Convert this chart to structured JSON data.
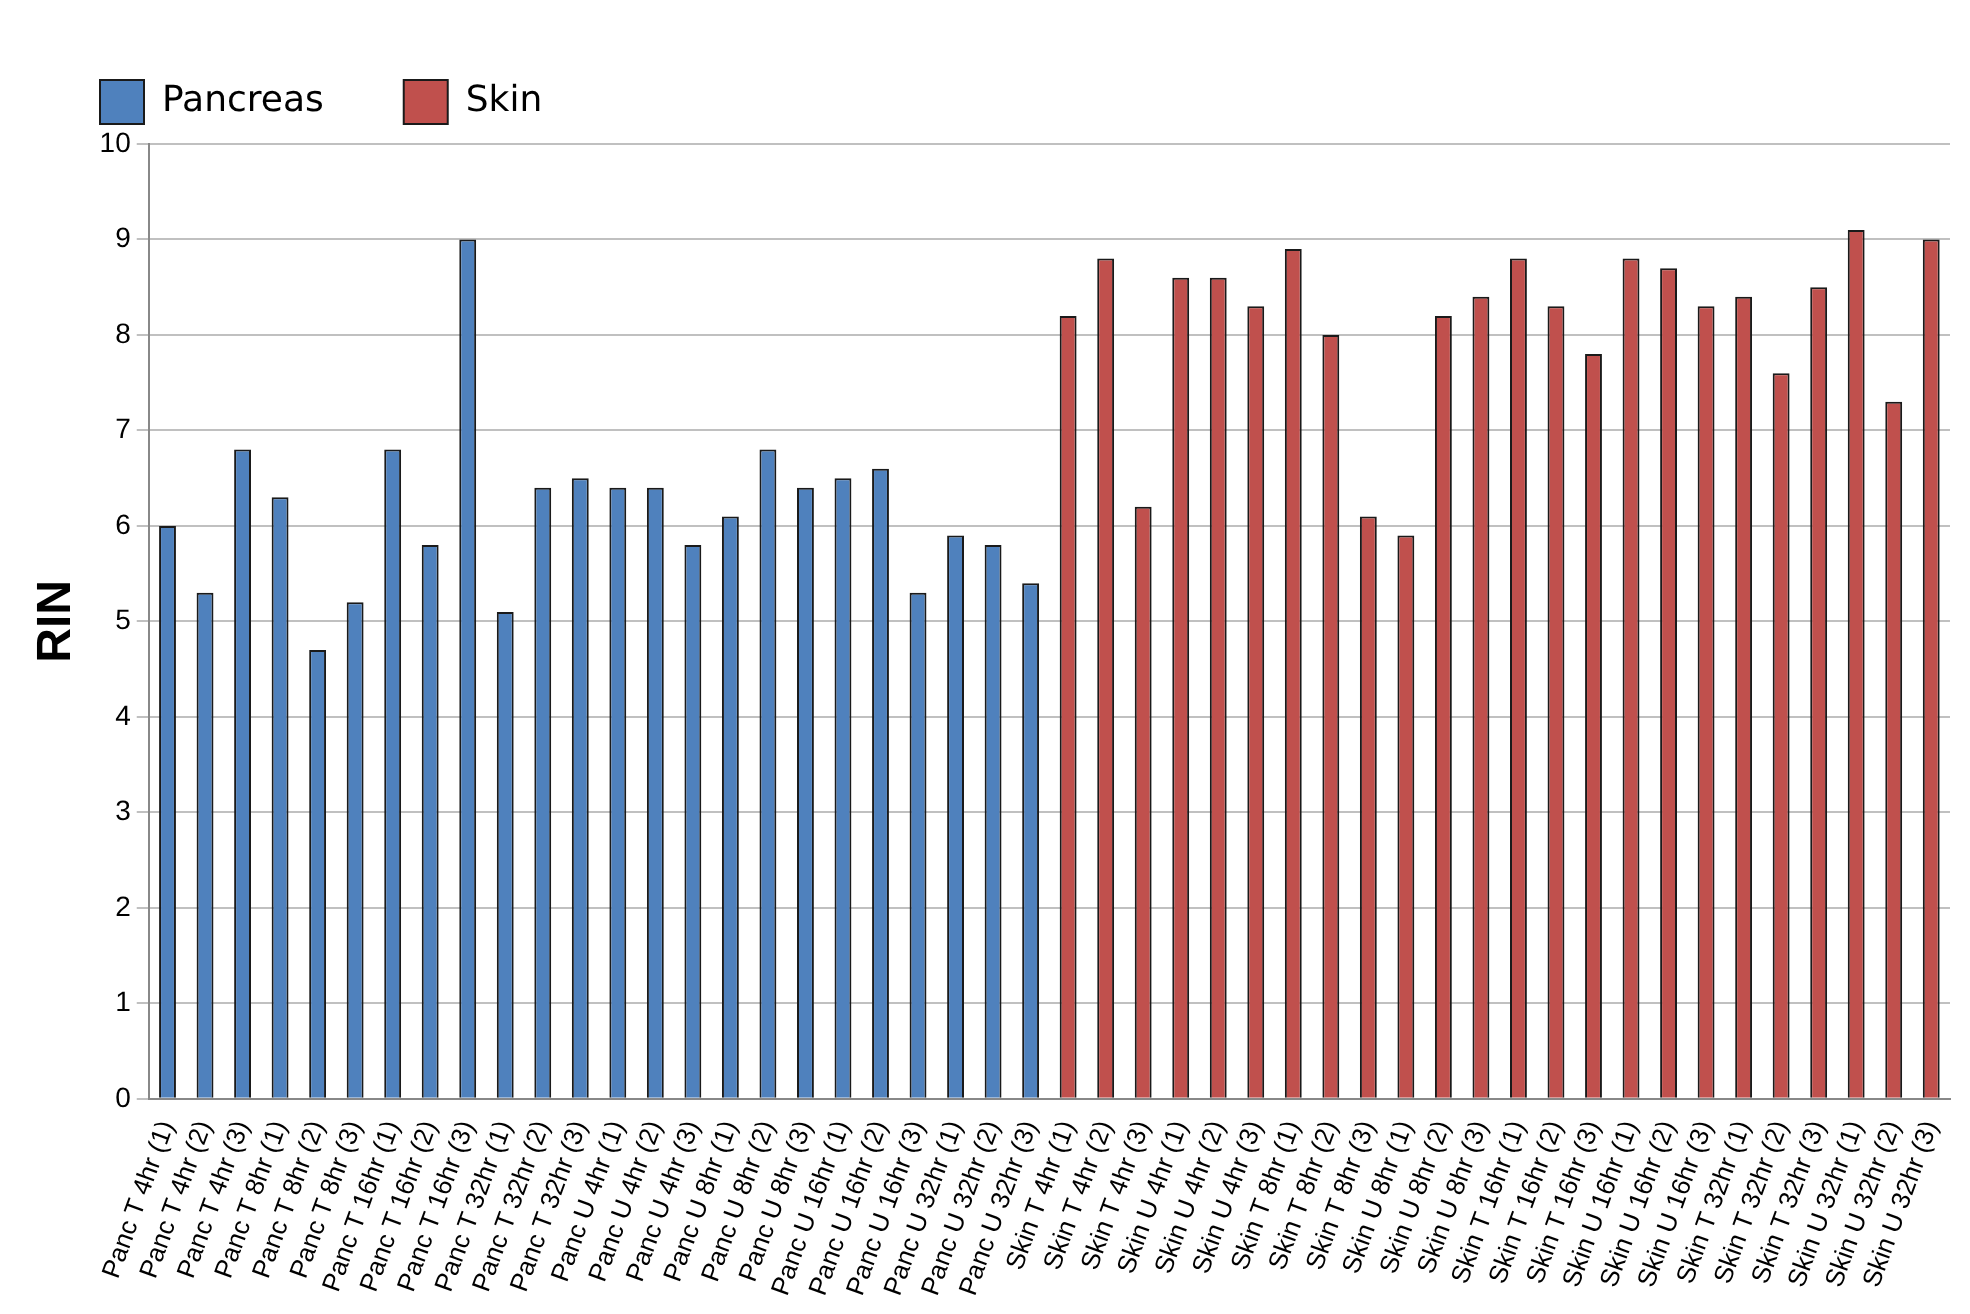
{
  "chart_data": {
    "type": "bar",
    "ylabel": "RIN",
    "categories": [
      "Panc T 4hr (1)",
      "Panc T 4hr (2)",
      "Panc T 4hr (3)",
      "Panc T 8hr (1)",
      "Panc T 8hr (2)",
      "Panc T 8hr (3)",
      "Panc T 16hr (1)",
      "Panc T 16hr (2)",
      "Panc T 16hr (3)",
      "Panc T 32hr (1)",
      "Panc T 32hr (2)",
      "Panc T 32hr (3)",
      "Panc U 4hr (1)",
      "Panc U 4hr (2)",
      "Panc U 4hr (3)",
      "Panc U 8hr (1)",
      "Panc U 8hr (2)",
      "Panc U 8hr (3)",
      "Panc U 16hr (1)",
      "Panc U 16hr (2)",
      "Panc U 16hr (3)",
      "Panc U 32hr (1)",
      "Panc U 32hr (2)",
      "Panc U 32hr (3)",
      "Skin T 4hr (1)",
      "Skin T 4hr (2)",
      "Skin T 4hr (3)",
      "Skin U 4hr (1)",
      "Skin U 4hr (2)",
      "Skin U 4hr (3)",
      "Skin T 8hr (1)",
      "Skin T 8hr (2)",
      "Skin T 8hr (3)",
      "Skin U 8hr (1)",
      "Skin U 8hr (2)",
      "Skin U 8hr (3)",
      "Skin T 16hr (1)",
      "Skin T 16hr (2)",
      "Skin T 16hr (3)",
      "Skin U 16hr (1)",
      "Skin U 16hr (2)",
      "Skin U 16hr (3)",
      "Skin T 32hr (1)",
      "Skin T 32hr (2)",
      "Skin T 32hr (3)",
      "Skin U 32hr (1)",
      "Skin U 32hr (2)",
      "Skin U 32hr (3)"
    ],
    "series": [
      {
        "name": "Pancreas",
        "color": "#4f81bd",
        "values": [
          6.0,
          5.3,
          6.8,
          6.3,
          4.7,
          5.2,
          6.8,
          5.8,
          9.0,
          5.1,
          6.4,
          6.5,
          6.4,
          6.4,
          5.8,
          6.1,
          6.8,
          6.4,
          6.5,
          6.6,
          5.3,
          5.9,
          5.8,
          5.4,
          null,
          null,
          null,
          null,
          null,
          null,
          null,
          null,
          null,
          null,
          null,
          null,
          null,
          null,
          null,
          null,
          null,
          null,
          null,
          null,
          null,
          null,
          null,
          null
        ]
      },
      {
        "name": "Skin",
        "color": "#c0504d",
        "values": [
          null,
          null,
          null,
          null,
          null,
          null,
          null,
          null,
          null,
          null,
          null,
          null,
          null,
          null,
          null,
          null,
          null,
          null,
          null,
          null,
          null,
          null,
          null,
          null,
          8.2,
          8.8,
          6.2,
          8.6,
          8.6,
          8.3,
          8.9,
          8.0,
          6.1,
          5.9,
          8.2,
          8.4,
          8.8,
          8.3,
          7.8,
          8.8,
          8.7,
          8.3,
          8.4,
          7.6,
          8.5,
          9.1,
          7.3,
          9.0
        ]
      }
    ],
    "ylim": [
      0,
      10
    ],
    "yticks": [
      0,
      1,
      2,
      3,
      4,
      5,
      6,
      7,
      8,
      9,
      10
    ],
    "grid": "y",
    "legend": "top left"
  }
}
